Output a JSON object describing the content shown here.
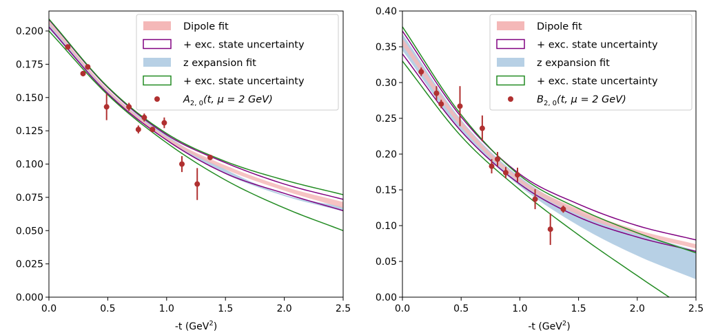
{
  "chart_data": [
    {
      "type": "scatter",
      "xlabel": "-t (GeV",
      "xlabel_sup": "2",
      "xlabel_close": ")",
      "ylabel": "",
      "xlim": [
        0.0,
        2.5
      ],
      "ylim": [
        0.0,
        0.215
      ],
      "xticks": [
        "0.0",
        "0.5",
        "1.0",
        "1.5",
        "2.0",
        "2.5"
      ],
      "xtick_values": [
        0.0,
        0.5,
        1.0,
        1.5,
        2.0,
        2.5
      ],
      "yticks": [
        "0.000",
        "0.025",
        "0.050",
        "0.075",
        "0.100",
        "0.125",
        "0.150",
        "0.175",
        "0.200"
      ],
      "ytick_values": [
        0.0,
        0.025,
        0.05,
        0.075,
        0.1,
        0.125,
        0.15,
        0.175,
        0.2
      ],
      "legend_position": "top-right",
      "legend": [
        {
          "label": "Dipole fit",
          "kind": "band",
          "color": "#f4b8b8"
        },
        {
          "label": "+ exc. state uncertainty",
          "kind": "box",
          "color": "#800080"
        },
        {
          "label": "z expansion fit",
          "kind": "band",
          "color": "#b7d0e5"
        },
        {
          "label": "+ exc. state uncertainty",
          "kind": "box",
          "color": "#228b22"
        },
        {
          "label_main": "A",
          "label_sub": "2, 0",
          "label_rest": "(t, μ = 2 GeV)",
          "kind": "point",
          "color": "#b03030"
        }
      ],
      "curves": {
        "dipole_band": {
          "x": [
            0,
            0.5,
            1.0,
            1.5,
            2.0,
            2.5
          ],
          "lower": [
            0.205,
            0.154,
            0.118,
            0.096,
            0.08,
            0.067
          ],
          "upper": [
            0.2075,
            0.156,
            0.1205,
            0.099,
            0.083,
            0.0715
          ]
        },
        "dipole_outer": {
          "x": [
            0,
            0.5,
            1.0,
            1.5,
            2.0,
            2.5
          ],
          "lower": [
            0.203,
            0.153,
            0.118,
            0.093,
            0.078,
            0.065
          ],
          "upper": [
            0.2085,
            0.1575,
            0.122,
            0.101,
            0.085,
            0.0735
          ]
        },
        "z_band": {
          "x": [
            0,
            0.5,
            1.0,
            1.5,
            2.0,
            2.5
          ],
          "lower": [
            0.2015,
            0.153,
            0.118,
            0.0925,
            0.076,
            0.0645
          ],
          "upper": [
            0.2075,
            0.156,
            0.1215,
            0.096,
            0.077,
            0.068
          ]
        },
        "z_outer": {
          "x": [
            0,
            0.5,
            1.0,
            1.5,
            2.0,
            2.5
          ],
          "lower": [
            0.2,
            0.152,
            0.116,
            0.088,
            0.067,
            0.05
          ],
          "upper": [
            0.209,
            0.158,
            0.123,
            0.102,
            0.088,
            0.077
          ]
        }
      },
      "points": [
        {
          "x": 0.16,
          "y": 0.188,
          "err": 0.002
        },
        {
          "x": 0.29,
          "y": 0.168,
          "err": 0.002
        },
        {
          "x": 0.33,
          "y": 0.173,
          "err": 0.002
        },
        {
          "x": 0.49,
          "y": 0.143,
          "err": 0.01
        },
        {
          "x": 0.68,
          "y": 0.143,
          "err": 0.003
        },
        {
          "x": 0.76,
          "y": 0.126,
          "err": 0.003
        },
        {
          "x": 0.81,
          "y": 0.135,
          "err": 0.003
        },
        {
          "x": 0.88,
          "y": 0.126,
          "err": 0.002
        },
        {
          "x": 0.98,
          "y": 0.131,
          "err": 0.004
        },
        {
          "x": 1.13,
          "y": 0.1,
          "err": 0.006
        },
        {
          "x": 1.26,
          "y": 0.085,
          "err": 0.012
        },
        {
          "x": 1.37,
          "y": 0.105,
          "err": 0.002
        }
      ]
    },
    {
      "type": "scatter",
      "xlabel": "-t (GeV",
      "xlabel_sup": "2",
      "xlabel_close": ")",
      "ylabel": "",
      "xlim": [
        0.0,
        2.5
      ],
      "ylim": [
        0.0,
        0.4
      ],
      "xticks": [
        "0.0",
        "0.5",
        "1.0",
        "1.5",
        "2.0",
        "2.5"
      ],
      "xtick_values": [
        0.0,
        0.5,
        1.0,
        1.5,
        2.0,
        2.5
      ],
      "yticks": [
        "0.00",
        "0.05",
        "0.10",
        "0.15",
        "0.20",
        "0.25",
        "0.30",
        "0.35",
        "0.40"
      ],
      "ytick_values": [
        0.0,
        0.05,
        0.1,
        0.15,
        0.2,
        0.25,
        0.3,
        0.35,
        0.4
      ],
      "legend_position": "top-right",
      "legend": [
        {
          "label": "Dipole fit",
          "kind": "band",
          "color": "#f4b8b8"
        },
        {
          "label": "+ exc. state uncertainty",
          "kind": "box",
          "color": "#800080"
        },
        {
          "label": "z expansion fit",
          "kind": "band",
          "color": "#b7d0e5"
        },
        {
          "label": "+ exc. state uncertainty",
          "kind": "box",
          "color": "#228b22"
        },
        {
          "label_main": "B",
          "label_sub": "2, 0",
          "label_rest": "(t, μ = 2 GeV)",
          "kind": "point",
          "color": "#b03030"
        }
      ],
      "curves": {
        "dipole_band": {
          "x": [
            0,
            0.5,
            1.0,
            1.5,
            2.0,
            2.5
          ],
          "lower": [
            0.352,
            0.238,
            0.16,
            0.115,
            0.088,
            0.068
          ],
          "upper": [
            0.362,
            0.246,
            0.166,
            0.123,
            0.094,
            0.074
          ]
        },
        "dipole_outer": {
          "x": [
            0,
            0.5,
            1.0,
            1.5,
            2.0,
            2.5
          ],
          "lower": [
            0.34,
            0.232,
            0.158,
            0.112,
            0.084,
            0.064
          ],
          "upper": [
            0.372,
            0.252,
            0.172,
            0.13,
            0.1,
            0.08
          ]
        },
        "z_band": {
          "x": [
            0,
            0.5,
            1.0,
            1.5,
            2.0,
            2.5
          ],
          "lower": [
            0.345,
            0.232,
            0.155,
            0.1,
            0.058,
            0.025
          ],
          "upper": [
            0.368,
            0.248,
            0.168,
            0.12,
            0.09,
            0.065
          ]
        },
        "z_outer": {
          "x": [
            0,
            0.5,
            1.0,
            1.5,
            2.0,
            2.5
          ],
          "lower": [
            0.33,
            0.225,
            0.15,
            0.087,
            0.03,
            -0.025
          ],
          "upper": [
            0.378,
            0.255,
            0.17,
            0.124,
            0.09,
            0.062
          ]
        }
      },
      "points": [
        {
          "x": 0.16,
          "y": 0.315,
          "err": 0.006
        },
        {
          "x": 0.29,
          "y": 0.285,
          "err": 0.01
        },
        {
          "x": 0.33,
          "y": 0.27,
          "err": 0.006
        },
        {
          "x": 0.49,
          "y": 0.267,
          "err": 0.028
        },
        {
          "x": 0.68,
          "y": 0.236,
          "err": 0.018
        },
        {
          "x": 0.76,
          "y": 0.183,
          "err": 0.01
        },
        {
          "x": 0.81,
          "y": 0.193,
          "err": 0.01
        },
        {
          "x": 0.88,
          "y": 0.174,
          "err": 0.008
        },
        {
          "x": 0.98,
          "y": 0.171,
          "err": 0.01
        },
        {
          "x": 1.13,
          "y": 0.137,
          "err": 0.014
        },
        {
          "x": 1.26,
          "y": 0.095,
          "err": 0.022
        },
        {
          "x": 1.37,
          "y": 0.123,
          "err": 0.005
        }
      ]
    }
  ]
}
